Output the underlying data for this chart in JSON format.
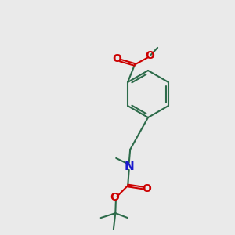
{
  "bg_color": "#eaeaea",
  "bond_color": "#2d6b4a",
  "nitrogen_color": "#1a1acc",
  "oxygen_color": "#cc0000",
  "bond_width": 1.5,
  "figsize": [
    3.0,
    3.0
  ],
  "dpi": 100,
  "xlim": [
    0,
    10
  ],
  "ylim": [
    0,
    10
  ]
}
